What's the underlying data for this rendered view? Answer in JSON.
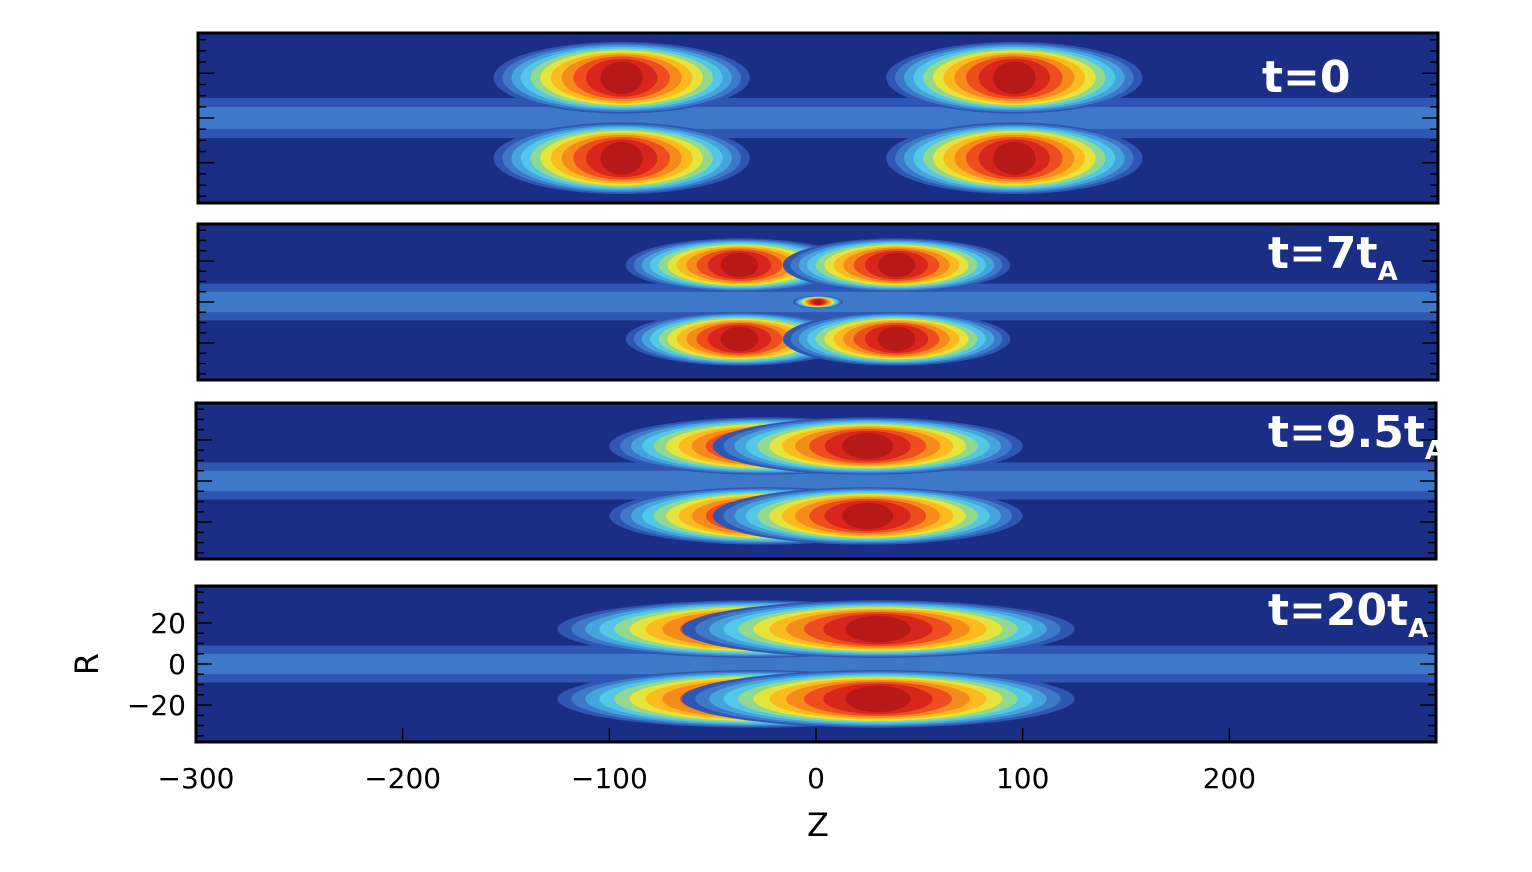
{
  "chart_data": {
    "type": "heatmap",
    "xlabel": "Z",
    "ylabel": "R",
    "xlim": [
      -300,
      300
    ],
    "ylim": [
      -38,
      38
    ],
    "xticks": [
      -300,
      -200,
      -100,
      0,
      100,
      200
    ],
    "xtick_labels": [
      "−300",
      "−200",
      "−100",
      "0",
      "100",
      "200"
    ],
    "yticks": [
      20,
      0,
      -20
    ],
    "ytick_labels": [
      "20",
      "0",
      "−20"
    ],
    "colormap": [
      "#1b2e86",
      "#2f56b3",
      "#3d79c8",
      "#45a4de",
      "#52c8e6",
      "#90d98f",
      "#e6e43a",
      "#fbbb1e",
      "#f68a1b",
      "#ee4e1d",
      "#d8261c",
      "#b71918"
    ],
    "background_color": "#1b2e86",
    "panels": [
      {
        "name": "t0",
        "label_main": "t=0",
        "label_sub": "",
        "blobs": [
          {
            "z": -95,
            "r": 18,
            "hz": 62,
            "hr": 16,
            "peak": 1.0
          },
          {
            "z": 95,
            "r": 18,
            "hz": 62,
            "hr": 16,
            "peak": 1.0
          },
          {
            "z": -95,
            "r": -18,
            "hz": 62,
            "hr": 16,
            "peak": 1.0
          },
          {
            "z": 95,
            "r": -18,
            "hz": 62,
            "hr": 16,
            "peak": 1.0
          }
        ]
      },
      {
        "name": "t7",
        "label_main": "t=7t",
        "label_sub": "A",
        "blobs": [
          {
            "z": -38,
            "r": 18,
            "hz": 55,
            "hr": 13,
            "peak": 1.0
          },
          {
            "z": 38,
            "r": 18,
            "hz": 55,
            "hr": 13,
            "peak": 1.0
          },
          {
            "z": -38,
            "r": -18,
            "hz": 55,
            "hr": 13,
            "peak": 1.0
          },
          {
            "z": 38,
            "r": -18,
            "hz": 55,
            "hr": 13,
            "peak": 1.0
          },
          {
            "z": 0,
            "r": 0,
            "hz": 12,
            "hr": 3,
            "peak": 0.9
          }
        ]
      },
      {
        "name": "t9_5",
        "label_main": "t=9.5t",
        "label_sub": "A",
        "blobs": [
          {
            "z": -25,
            "r": 17,
            "hz": 75,
            "hr": 14,
            "peak": 1.0
          },
          {
            "z": 25,
            "r": 17,
            "hz": 75,
            "hr": 14,
            "peak": 1.0
          },
          {
            "z": -25,
            "r": -17,
            "hz": 75,
            "hr": 14,
            "peak": 1.0
          },
          {
            "z": 25,
            "r": -17,
            "hz": 75,
            "hr": 14,
            "peak": 1.0
          }
        ]
      },
      {
        "name": "t20",
        "label_main": "t=20t",
        "label_sub": "A",
        "blobs": [
          {
            "z": -30,
            "r": 17,
            "hz": 95,
            "hr": 14,
            "peak": 1.0
          },
          {
            "z": 30,
            "r": 17,
            "hz": 95,
            "hr": 14,
            "peak": 1.0
          },
          {
            "z": -30,
            "r": -17,
            "hz": 95,
            "hr": 14,
            "peak": 1.0
          },
          {
            "z": 30,
            "r": -17,
            "hz": 95,
            "hr": 14,
            "peak": 1.0
          }
        ]
      }
    ]
  }
}
